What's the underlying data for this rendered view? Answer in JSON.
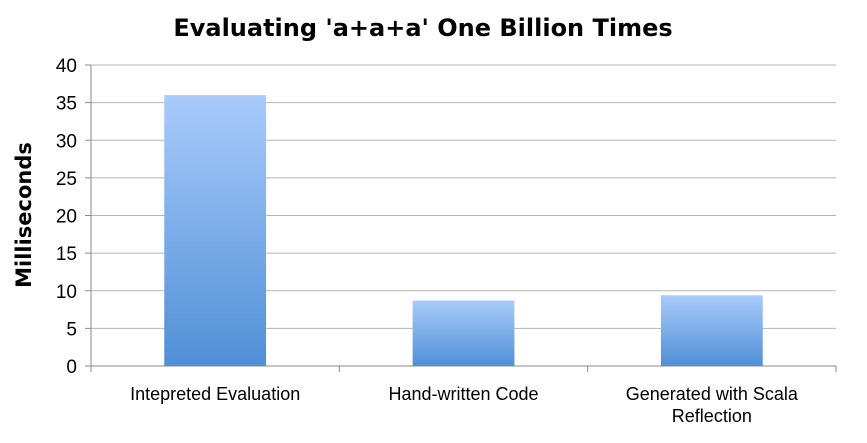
{
  "chart_data": {
    "type": "bar",
    "title": "Evaluating 'a+a+a' One Billion Times",
    "xlabel": "",
    "ylabel": "Milliseconds",
    "categories": [
      [
        "Intepreted Evaluation"
      ],
      [
        "Hand-written Code"
      ],
      [
        "Generated with Scala",
        "Reflection"
      ]
    ],
    "values": [
      36,
      8.7,
      9.4
    ],
    "ylim": [
      0,
      40
    ],
    "yticks": [
      0,
      5,
      10,
      15,
      20,
      25,
      30,
      35,
      40
    ],
    "grid": true,
    "legend": "none",
    "colors": {
      "bar_top": "#a9cbfb",
      "bar_bottom": "#4f8fd6",
      "grid": "#b5b5b5",
      "axis": "#8a8a8a"
    }
  }
}
